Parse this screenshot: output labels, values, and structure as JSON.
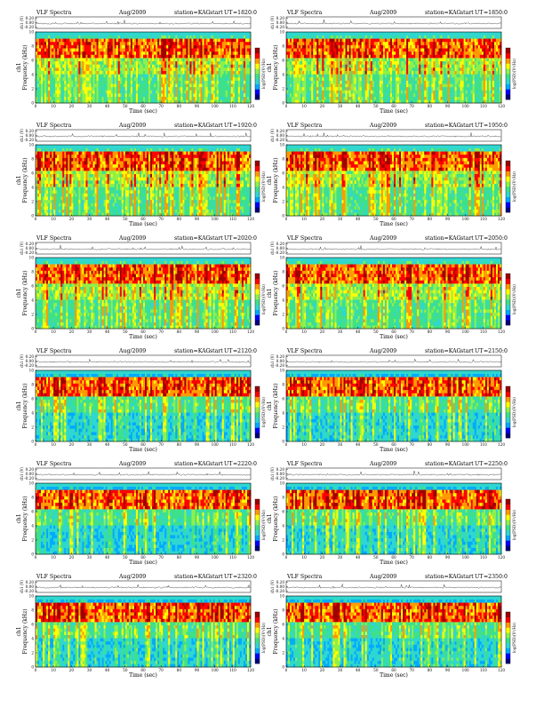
{
  "header": {
    "title": "VLF Spectra",
    "date": "Aug/2009",
    "station": "station=KAG",
    "start_label": "start",
    "ut_label": "UT"
  },
  "axes": {
    "xlabel": "Time (sec)",
    "ylabel_channel": "ch1",
    "ylabel_freq": "Frequency (kHz)",
    "trace_ylabel": "ch1 (V)",
    "trace_ticks": [
      "0.20",
      "0.00",
      "-0.20"
    ],
    "colorbar_label": "log(PSD)(V²/Hz)"
  },
  "colors": {
    "colormap": [
      "#00007f",
      "#0000ff",
      "#00aaff",
      "#2fd7d0",
      "#3ee08a",
      "#8ff04a",
      "#ffff00",
      "#ff9a00",
      "#ff0000",
      "#a00000"
    ],
    "trace": "#000000",
    "frame": "#000000"
  },
  "chart_data": [
    {
      "type": "heatmap",
      "panel": "row1-left",
      "start_ut": "=1820:0",
      "x_range": [
        0,
        120
      ],
      "y_range": [
        0,
        10
      ],
      "xticks": [
        "0",
        "10",
        "20",
        "30",
        "40",
        "50",
        "60",
        "70",
        "80",
        "90",
        "100",
        "110",
        "120"
      ],
      "yticks": [
        "0",
        "2",
        "4",
        "6",
        "8",
        "10"
      ]
    },
    {
      "type": "heatmap",
      "panel": "row1-right",
      "start_ut": "=1850:0",
      "x_range": [
        0,
        120
      ],
      "y_range": [
        0,
        10
      ],
      "xticks": [
        "0",
        "10",
        "20",
        "30",
        "40",
        "50",
        "60",
        "70",
        "80",
        "90",
        "100",
        "110",
        "120"
      ],
      "yticks": [
        "0",
        "2",
        "4",
        "6",
        "8",
        "10"
      ]
    },
    {
      "type": "heatmap",
      "panel": "row2-left",
      "start_ut": "=1920:0",
      "x_range": [
        0,
        120
      ],
      "y_range": [
        0,
        10
      ],
      "xticks": [
        "0",
        "10",
        "20",
        "30",
        "40",
        "50",
        "60",
        "70",
        "80",
        "90",
        "100",
        "110",
        "120"
      ],
      "yticks": [
        "0",
        "2",
        "4",
        "6",
        "8",
        "10"
      ]
    },
    {
      "type": "heatmap",
      "panel": "row2-right",
      "start_ut": "=1950:0",
      "x_range": [
        0,
        120
      ],
      "y_range": [
        0,
        10
      ],
      "xticks": [
        "0",
        "10",
        "20",
        "30",
        "40",
        "50",
        "60",
        "70",
        "80",
        "90",
        "100",
        "110",
        "120"
      ],
      "yticks": [
        "0",
        "2",
        "4",
        "6",
        "8",
        "10"
      ]
    },
    {
      "type": "heatmap",
      "panel": "row3-left",
      "start_ut": "=2020:0",
      "x_range": [
        0,
        120
      ],
      "y_range": [
        0,
        10
      ],
      "xticks": [
        "0",
        "10",
        "20",
        "30",
        "40",
        "50",
        "60",
        "70",
        "80",
        "90",
        "100",
        "110",
        "120"
      ],
      "yticks": [
        "0",
        "2",
        "4",
        "6",
        "8",
        "10"
      ]
    },
    {
      "type": "heatmap",
      "panel": "row3-right",
      "start_ut": "=2050:0",
      "x_range": [
        0,
        120
      ],
      "y_range": [
        0,
        10
      ],
      "xticks": [
        "0",
        "10",
        "20",
        "30",
        "40",
        "50",
        "60",
        "70",
        "80",
        "90",
        "100",
        "110",
        "120"
      ],
      "yticks": [
        "0",
        "2",
        "4",
        "6",
        "8",
        "10"
      ]
    },
    {
      "type": "heatmap",
      "panel": "row4-left",
      "start_ut": "=2120:0",
      "x_range": [
        0,
        120
      ],
      "y_range": [
        0,
        10
      ],
      "xticks": [
        "0",
        "10",
        "20",
        "30",
        "40",
        "50",
        "60",
        "70",
        "80",
        "90",
        "100",
        "110",
        "120"
      ],
      "yticks": [
        "0",
        "2",
        "4",
        "6",
        "8",
        "10"
      ]
    },
    {
      "type": "heatmap",
      "panel": "row4-right",
      "start_ut": "=2150:0",
      "x_range": [
        0,
        120
      ],
      "y_range": [
        0,
        10
      ],
      "xticks": [
        "0",
        "10",
        "20",
        "30",
        "40",
        "50",
        "60",
        "70",
        "80",
        "90",
        "100",
        "110",
        "120"
      ],
      "yticks": [
        "0",
        "2",
        "4",
        "6",
        "8",
        "10"
      ]
    },
    {
      "type": "heatmap",
      "panel": "row5-left",
      "start_ut": "=2220:0",
      "x_range": [
        0,
        120
      ],
      "y_range": [
        0,
        10
      ],
      "xticks": [
        "0",
        "10",
        "20",
        "30",
        "40",
        "50",
        "60",
        "70",
        "80",
        "90",
        "100",
        "110",
        "120"
      ],
      "yticks": [
        "0",
        "2",
        "4",
        "6",
        "8",
        "10"
      ]
    },
    {
      "type": "heatmap",
      "panel": "row5-right",
      "start_ut": "=2250:0",
      "x_range": [
        0,
        120
      ],
      "y_range": [
        0,
        10
      ],
      "xticks": [
        "0",
        "10",
        "20",
        "30",
        "40",
        "50",
        "60",
        "70",
        "80",
        "90",
        "100",
        "110",
        "120"
      ],
      "yticks": [
        "0",
        "2",
        "4",
        "6",
        "8",
        "10"
      ]
    },
    {
      "type": "heatmap",
      "panel": "row6-left",
      "start_ut": "=2320:0",
      "x_range": [
        0,
        120
      ],
      "y_range": [
        0,
        10
      ],
      "xticks": [
        "0",
        "10",
        "20",
        "30",
        "40",
        "50",
        "60",
        "70",
        "80",
        "90",
        "100",
        "110",
        "120"
      ],
      "yticks": [
        "0",
        "2",
        "4",
        "6",
        "8",
        "10"
      ]
    },
    {
      "type": "heatmap",
      "panel": "row6-right",
      "start_ut": "=2350:0",
      "x_range": [
        0,
        120
      ],
      "y_range": [
        0,
        10
      ],
      "xticks": [
        "0",
        "10",
        "20",
        "30",
        "40",
        "50",
        "60",
        "70",
        "80",
        "90",
        "100",
        "110",
        "120"
      ],
      "yticks": [
        "0",
        "2",
        "4",
        "6",
        "8",
        "10"
      ]
    }
  ]
}
